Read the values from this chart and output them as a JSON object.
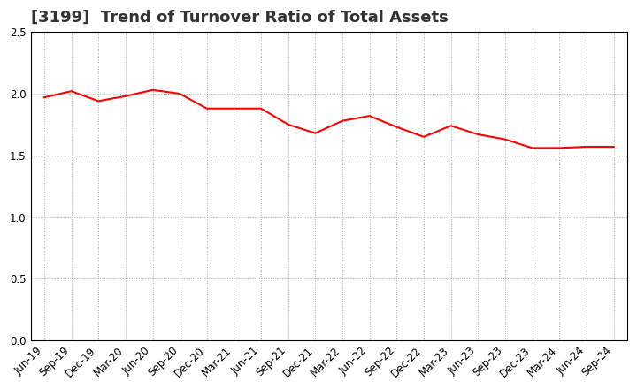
{
  "title": "[3199]  Trend of Turnover Ratio of Total Assets",
  "labels": [
    "Jun-19",
    "Sep-19",
    "Dec-19",
    "Mar-20",
    "Jun-20",
    "Sep-20",
    "Dec-20",
    "Mar-21",
    "Jun-21",
    "Sep-21",
    "Dec-21",
    "Mar-22",
    "Jun-22",
    "Sep-22",
    "Dec-22",
    "Mar-23",
    "Jun-23",
    "Sep-23",
    "Dec-23",
    "Mar-24",
    "Jun-24",
    "Sep-24"
  ],
  "values": [
    1.97,
    2.02,
    1.94,
    1.98,
    2.03,
    2.0,
    1.88,
    1.88,
    1.88,
    1.75,
    1.68,
    1.78,
    1.82,
    1.73,
    1.65,
    1.74,
    1.67,
    1.63,
    1.56,
    1.56,
    1.57,
    1.57
  ],
  "line_color": "#FF0000",
  "line_width": 1.5,
  "ylim": [
    0.0,
    2.5
  ],
  "yticks": [
    0.0,
    0.5,
    1.0,
    1.5,
    2.0,
    2.5
  ],
  "ytick_labels": [
    "0.0",
    "0.5",
    "1.0",
    "1.5",
    "2.0",
    "2.5"
  ],
  "grid_color": "#aaaaaa",
  "grid_style": "dotted",
  "background_color": "#ffffff",
  "title_fontsize": 13,
  "tick_fontsize": 8.5,
  "title_color": "#333333"
}
